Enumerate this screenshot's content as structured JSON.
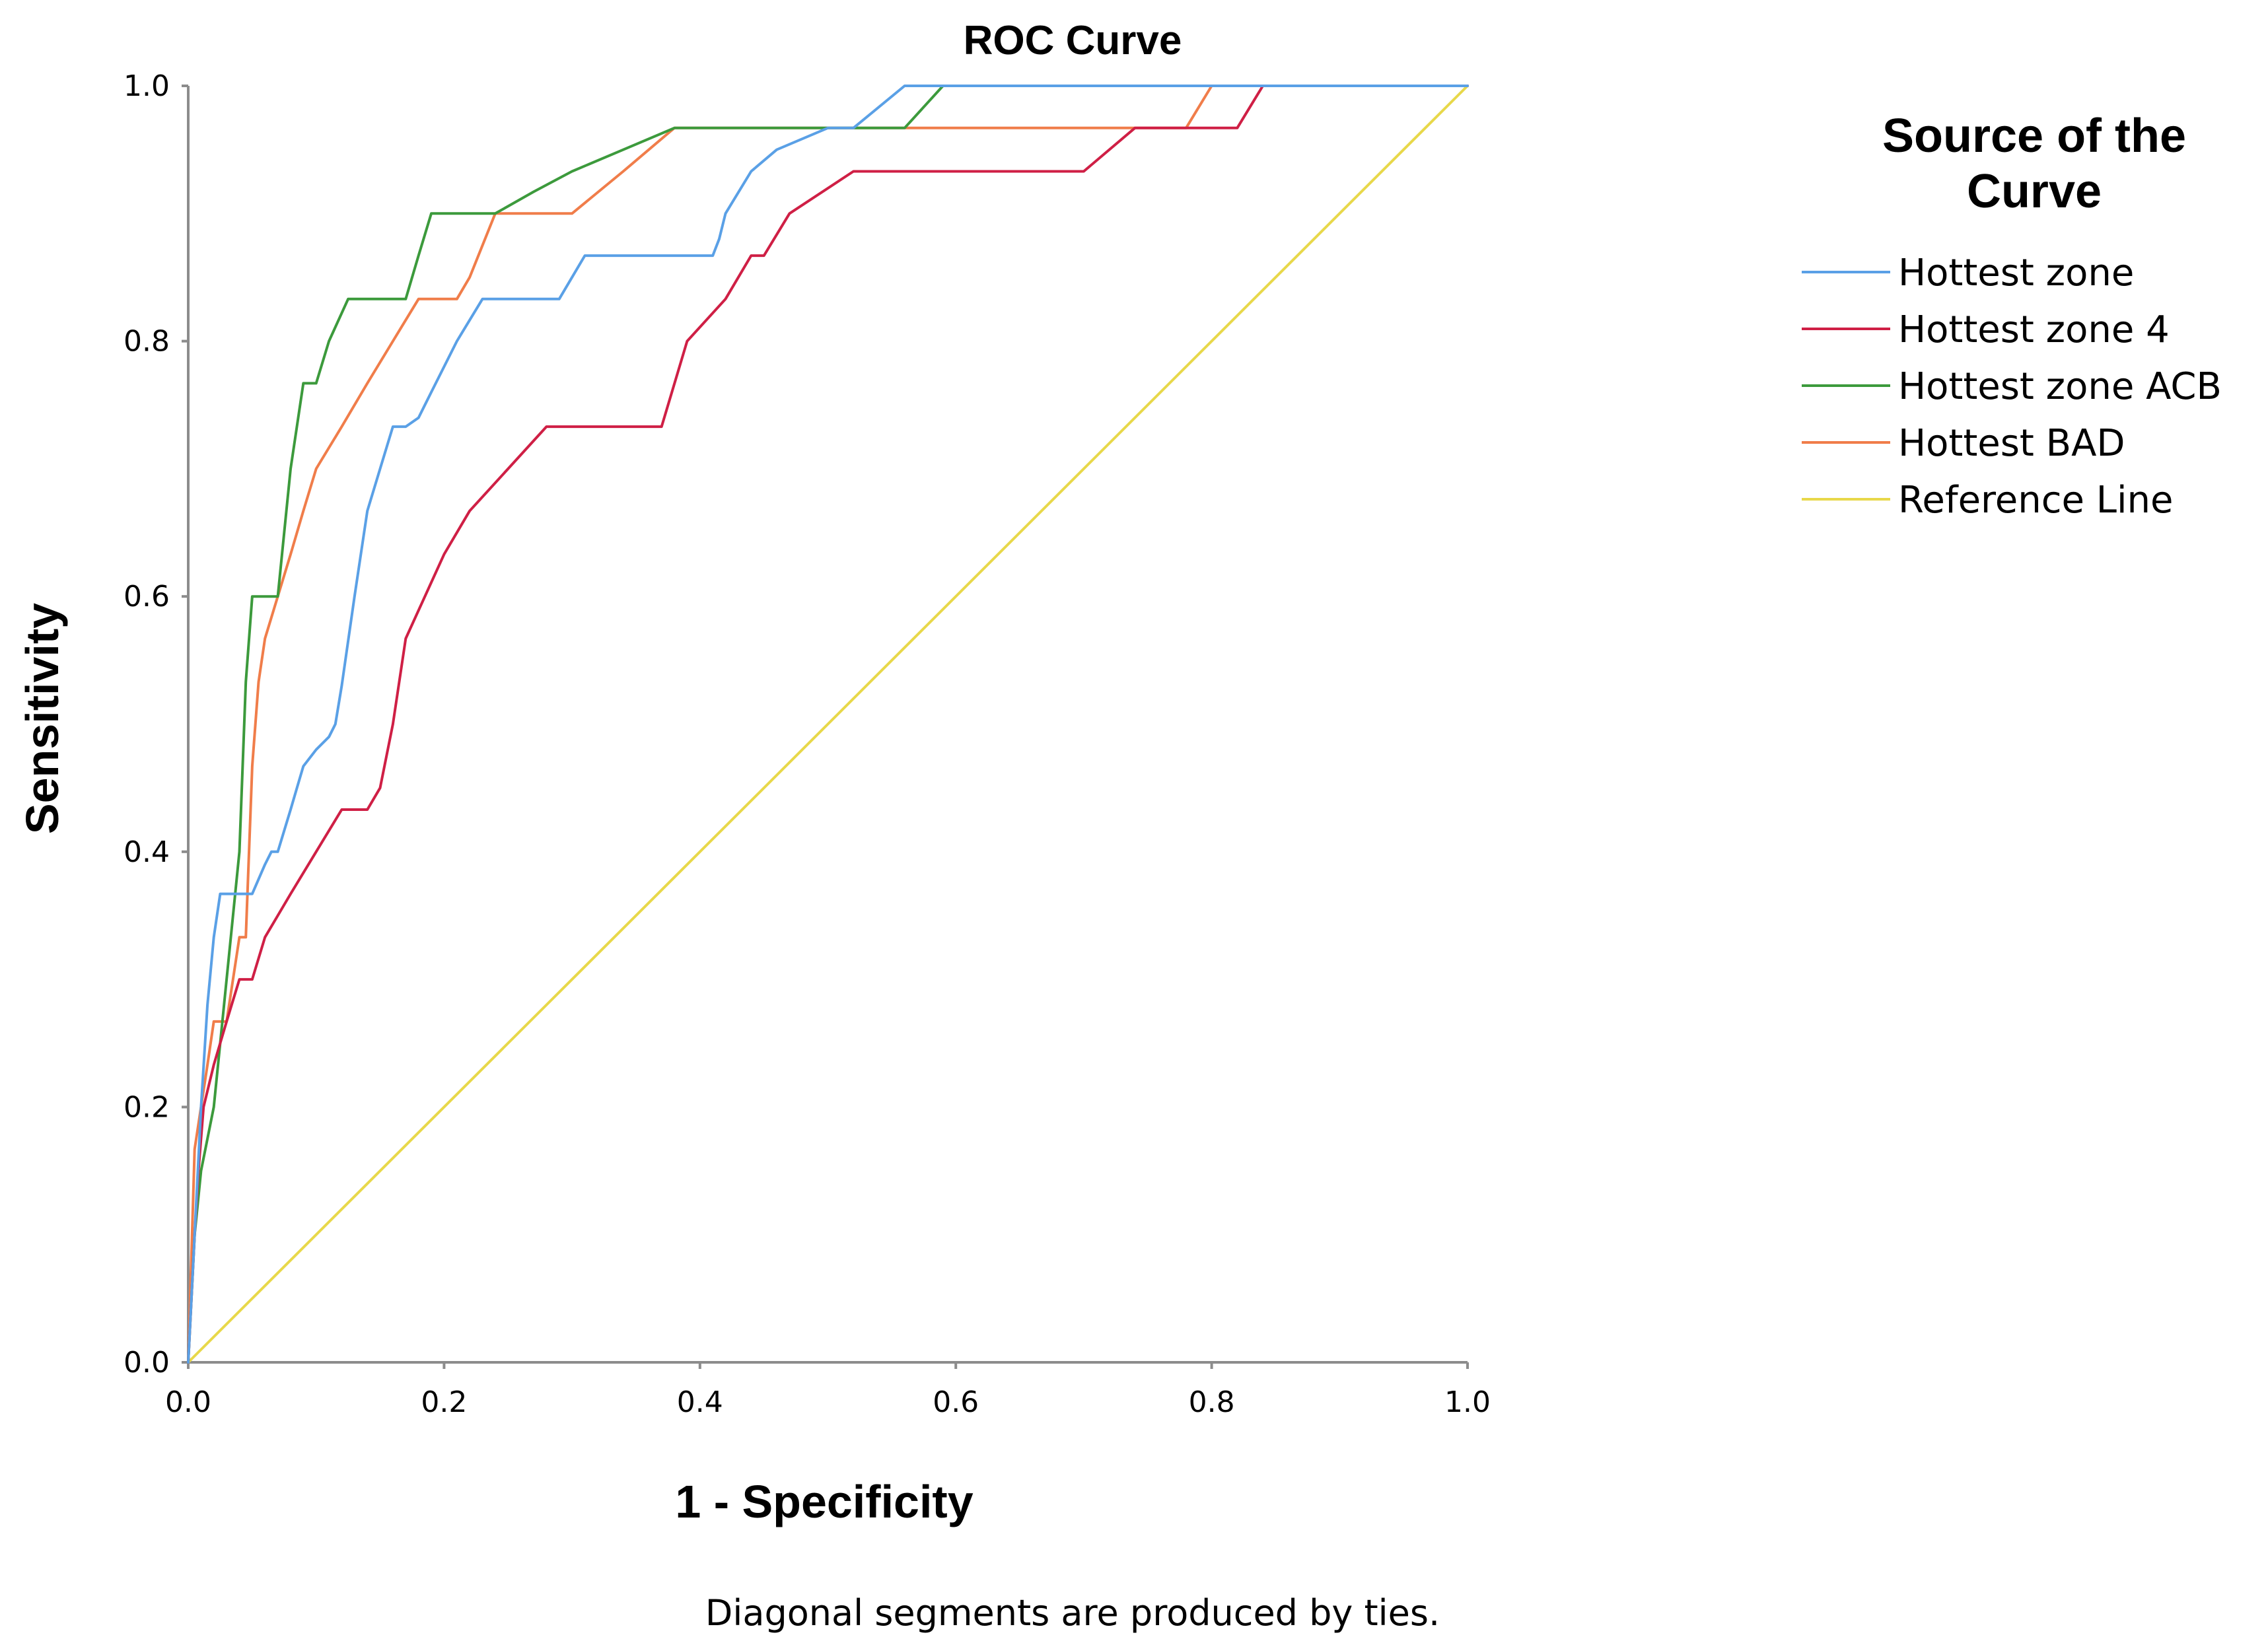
{
  "chart_data": {
    "type": "line",
    "title": "ROC Curve",
    "xlabel": "1 - Specificity",
    "ylabel": "Sensitivity",
    "xlim": [
      0,
      1
    ],
    "ylim": [
      0,
      1
    ],
    "x_ticks": [
      "0.0",
      "0.2",
      "0.4",
      "0.6",
      "0.8",
      "1.0"
    ],
    "y_ticks": [
      "0.0",
      "0.2",
      "0.4",
      "0.6",
      "0.8",
      "1.0"
    ],
    "grid": false,
    "legend": {
      "title": "Source of the Curve",
      "position": "right"
    },
    "footnote": "Diagonal segments are produced by ties.",
    "series": [
      {
        "name": "Hottest zone",
        "color": "#5aa0e6",
        "x": [
          0,
          0.005,
          0.01,
          0.015,
          0.02,
          0.025,
          0.04,
          0.05,
          0.06,
          0.065,
          0.07,
          0.08,
          0.085,
          0.09,
          0.1,
          0.11,
          0.115,
          0.12,
          0.13,
          0.14,
          0.15,
          0.16,
          0.17,
          0.18,
          0.185,
          0.19,
          0.21,
          0.23,
          0.26,
          0.29,
          0.31,
          0.36,
          0.41,
          0.415,
          0.42,
          0.44,
          0.46,
          0.5,
          0.52,
          0.56,
          0.6,
          0.8,
          1.0
        ],
        "y": [
          0,
          0.1,
          0.2,
          0.28,
          0.333,
          0.367,
          0.367,
          0.367,
          0.39,
          0.4,
          0.4,
          0.433,
          0.45,
          0.467,
          0.48,
          0.49,
          0.5,
          0.53,
          0.6,
          0.667,
          0.7,
          0.733,
          0.733,
          0.74,
          0.75,
          0.76,
          0.8,
          0.833,
          0.833,
          0.833,
          0.867,
          0.867,
          0.867,
          0.88,
          0.9,
          0.933,
          0.95,
          0.967,
          0.967,
          1.0,
          1.0,
          1.0,
          1.0
        ]
      },
      {
        "name": "Hottest zone 4",
        "color": "#cf1f45",
        "x": [
          0,
          0.005,
          0.008,
          0.012,
          0.02,
          0.03,
          0.04,
          0.05,
          0.06,
          0.07,
          0.08,
          0.1,
          0.12,
          0.14,
          0.15,
          0.16,
          0.17,
          0.2,
          0.22,
          0.25,
          0.28,
          0.32,
          0.37,
          0.39,
          0.42,
          0.44,
          0.45,
          0.47,
          0.52,
          0.6,
          0.7,
          0.74,
          0.8,
          0.82,
          0.84,
          1.0
        ],
        "y": [
          0,
          0.1,
          0.15,
          0.2,
          0.233,
          0.267,
          0.3,
          0.3,
          0.333,
          0.35,
          0.367,
          0.4,
          0.433,
          0.433,
          0.45,
          0.5,
          0.567,
          0.633,
          0.667,
          0.7,
          0.733,
          0.733,
          0.733,
          0.8,
          0.833,
          0.867,
          0.867,
          0.9,
          0.933,
          0.933,
          0.933,
          0.967,
          0.967,
          0.967,
          1.0,
          1.0
        ]
      },
      {
        "name": "Hottest zone ACB",
        "color": "#3c9a3c",
        "x": [
          0,
          0.005,
          0.01,
          0.02,
          0.03,
          0.04,
          0.045,
          0.05,
          0.06,
          0.07,
          0.08,
          0.09,
          0.1,
          0.11,
          0.125,
          0.13,
          0.15,
          0.16,
          0.17,
          0.18,
          0.19,
          0.21,
          0.24,
          0.27,
          0.3,
          0.34,
          0.38,
          0.4,
          0.44,
          0.5,
          0.56,
          0.59,
          0.65,
          0.8,
          1.0
        ],
        "y": [
          0,
          0.1,
          0.15,
          0.2,
          0.3,
          0.4,
          0.533,
          0.6,
          0.6,
          0.6,
          0.7,
          0.767,
          0.767,
          0.8,
          0.833,
          0.833,
          0.833,
          0.833,
          0.833,
          0.867,
          0.9,
          0.9,
          0.9,
          0.917,
          0.933,
          0.95,
          0.967,
          0.967,
          0.967,
          0.967,
          0.967,
          1.0,
          1.0,
          1.0,
          1.0
        ]
      },
      {
        "name": "Hottest BAD",
        "color": "#f07d4a",
        "x": [
          0,
          0.005,
          0.01,
          0.015,
          0.02,
          0.03,
          0.035,
          0.04,
          0.045,
          0.05,
          0.055,
          0.06,
          0.07,
          0.08,
          0.09,
          0.1,
          0.12,
          0.14,
          0.16,
          0.18,
          0.21,
          0.22,
          0.24,
          0.25,
          0.28,
          0.3,
          0.34,
          0.38,
          0.4,
          0.5,
          0.6,
          0.76,
          0.78,
          0.8,
          1.0
        ],
        "y": [
          0,
          0.167,
          0.2,
          0.233,
          0.267,
          0.267,
          0.3,
          0.333,
          0.333,
          0.467,
          0.533,
          0.567,
          0.6,
          0.633,
          0.667,
          0.7,
          0.733,
          0.767,
          0.8,
          0.833,
          0.833,
          0.85,
          0.9,
          0.9,
          0.9,
          0.9,
          0.933,
          0.967,
          0.967,
          0.967,
          0.967,
          0.967,
          0.967,
          1.0,
          1.0
        ]
      },
      {
        "name": "Reference Line",
        "color": "#e8d84a",
        "x": [
          0,
          1
        ],
        "y": [
          0,
          1
        ]
      }
    ]
  }
}
